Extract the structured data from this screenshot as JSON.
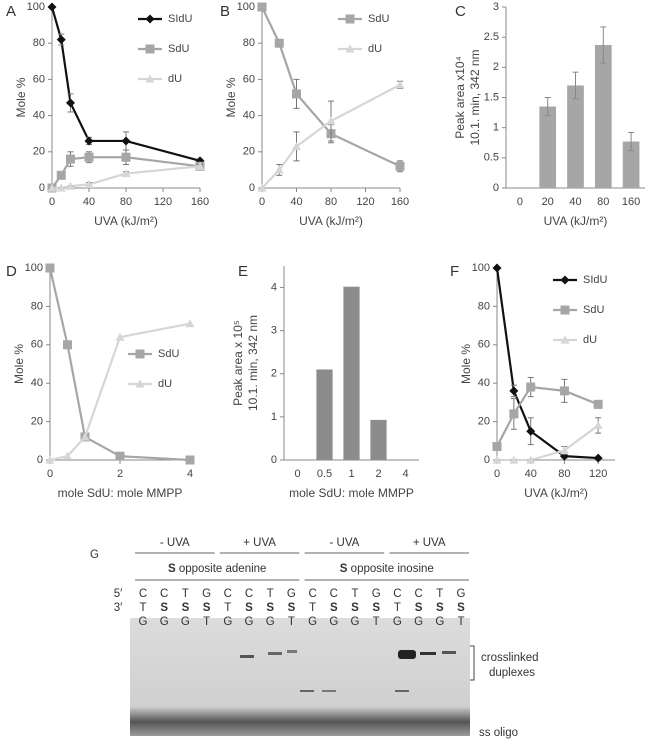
{
  "chart_data": [
    {
      "type": "line",
      "panel": "A",
      "xlabel": "UVA (kJ/m²)",
      "ylabel": [
        "Mole %"
      ],
      "x": [
        0,
        10,
        20,
        40,
        80,
        160
      ],
      "xlim": [
        0,
        160
      ],
      "xticks": [
        0,
        40,
        80,
        120,
        160
      ],
      "ylim": [
        0,
        100
      ],
      "yticks": [
        0,
        20,
        40,
        60,
        80,
        100
      ],
      "legend": "upper right",
      "series": [
        {
          "name": "SIdU",
          "color": "#111111",
          "marker": "diamond",
          "values": [
            100,
            82,
            47,
            26,
            26,
            15
          ],
          "errors": [
            0,
            3,
            5,
            2,
            5,
            1
          ]
        },
        {
          "name": "SdU",
          "color": "#a6a6a6",
          "marker": "square",
          "values": [
            0,
            7,
            16,
            17,
            17,
            12
          ],
          "errors": [
            0,
            2,
            4,
            3,
            4,
            2
          ]
        },
        {
          "name": "dU",
          "color": "#d6d6d6",
          "marker": "triangle",
          "values": [
            0,
            0,
            1,
            2,
            8,
            12
          ],
          "errors": [
            0,
            0,
            0,
            1,
            1,
            1
          ]
        }
      ]
    },
    {
      "type": "line",
      "panel": "B",
      "xlabel": "UVA (kJ/m²)",
      "ylabel": [
        "Mole %"
      ],
      "x": [
        0,
        20,
        40,
        80,
        160
      ],
      "xlim": [
        0,
        160
      ],
      "xticks": [
        0,
        40,
        80,
        120,
        160
      ],
      "ylim": [
        0,
        100
      ],
      "yticks": [
        0,
        20,
        40,
        60,
        80,
        100
      ],
      "legend": "upper right",
      "series": [
        {
          "name": "SdU",
          "color": "#a6a6a6",
          "marker": "square",
          "values": [
            100,
            80,
            52,
            30,
            12
          ],
          "errors": [
            0,
            2,
            8,
            5,
            3
          ]
        },
        {
          "name": "dU",
          "color": "#d6d6d6",
          "marker": "triangle",
          "values": [
            0,
            10,
            23,
            37,
            57
          ],
          "errors": [
            0,
            3,
            8,
            11,
            2
          ]
        }
      ]
    },
    {
      "type": "bar",
      "panel": "C",
      "xlabel": "UVA (kJ/m²)",
      "ylabel": [
        "Peak area x10⁴",
        "10.1. min, 342 nm"
      ],
      "categories": [
        "0",
        "20",
        "40",
        "80",
        "160"
      ],
      "values": [
        0,
        1.35,
        1.7,
        2.37,
        0.77
      ],
      "errors": [
        null,
        0.15,
        0.22,
        0.3,
        0.15
      ],
      "color": "#a6a6a6",
      "ylim": [
        0,
        3
      ],
      "yticks": [
        0,
        0.5,
        1,
        1.5,
        2,
        2.5,
        3
      ]
    },
    {
      "type": "line",
      "panel": "D",
      "xlabel": "mole SdU: mole MMPP",
      "ylabel": [
        "Mole %"
      ],
      "x": [
        0,
        0.5,
        1,
        2,
        4
      ],
      "xlim": [
        0,
        4
      ],
      "xticks": [
        0,
        2,
        4
      ],
      "ylim": [
        0,
        100
      ],
      "yticks": [
        0,
        20,
        40,
        60,
        80,
        100
      ],
      "legend": "center right",
      "series": [
        {
          "name": "SdU",
          "color": "#a6a6a6",
          "marker": "square",
          "values": [
            100,
            60,
            12,
            2,
            0
          ]
        },
        {
          "name": "dU",
          "color": "#d6d6d6",
          "marker": "triangle",
          "values": [
            0,
            2,
            12,
            64,
            71
          ]
        }
      ]
    },
    {
      "type": "bar",
      "panel": "E",
      "xlabel": "mole SdU: mole MMPP",
      "ylabel": [
        "Peak area x 10⁵",
        "10.1. min, 342 nm"
      ],
      "categories": [
        "0",
        "0.5",
        "1",
        "2",
        "4"
      ],
      "values": [
        0,
        2.1,
        4.02,
        0.93,
        0
      ],
      "color": "#8c8c8c",
      "ylim": [
        0,
        4.5
      ],
      "yticks": [
        0,
        1,
        2,
        3,
        4
      ]
    },
    {
      "type": "line",
      "panel": "F",
      "xlabel": "UVA (kJ/m²)",
      "ylabel": [
        "Mole %"
      ],
      "x": [
        0,
        20,
        40,
        80,
        120
      ],
      "xlim": [
        0,
        140
      ],
      "xticks": [
        0,
        40,
        80,
        120
      ],
      "ylim": [
        0,
        100
      ],
      "yticks": [
        0,
        20,
        40,
        60,
        80,
        100
      ],
      "legend": "upper right",
      "series": [
        {
          "name": "SIdU",
          "color": "#111111",
          "marker": "diamond",
          "values": [
            100,
            36,
            15,
            2,
            1
          ],
          "errors": [
            0,
            3,
            7,
            1,
            0
          ]
        },
        {
          "name": "SdU",
          "color": "#a6a6a6",
          "marker": "square",
          "values": [
            7,
            24,
            38,
            36,
            29
          ],
          "errors": [
            0,
            8,
            5,
            6,
            2
          ]
        },
        {
          "name": "dU",
          "color": "#d6d6d6",
          "marker": "triangle",
          "values": [
            0,
            0,
            0,
            5,
            18
          ],
          "errors": [
            0,
            0,
            0,
            2,
            4
          ]
        }
      ]
    }
  ],
  "gel": {
    "panel": "G",
    "conditions": [
      "- UVA",
      "+ UVA",
      "- UVA",
      "+ UVA"
    ],
    "groups": [
      {
        "bold": "S",
        "label": "opposite adenine"
      },
      {
        "bold": "S",
        "label": "opposite inosine"
      }
    ],
    "end5": "5′",
    "end3": "3′",
    "rows": [
      [
        "C",
        "C",
        "T",
        "G",
        "C",
        "C",
        "T",
        "G",
        "C",
        "C",
        "T",
        "G",
        "C",
        "C",
        "T",
        "G"
      ],
      [
        "T",
        "S",
        "S",
        "S",
        "T",
        "S",
        "S",
        "S",
        "T",
        "S",
        "S",
        "S",
        "T",
        "S",
        "S",
        "S"
      ],
      [
        "G",
        "G",
        "G",
        "T",
        "G",
        "G",
        "G",
        "T",
        "G",
        "G",
        "G",
        "T",
        "G",
        "G",
        "G",
        "T"
      ]
    ],
    "annotations": [
      "crosslinked",
      "duplexes",
      "ss oligo"
    ]
  }
}
